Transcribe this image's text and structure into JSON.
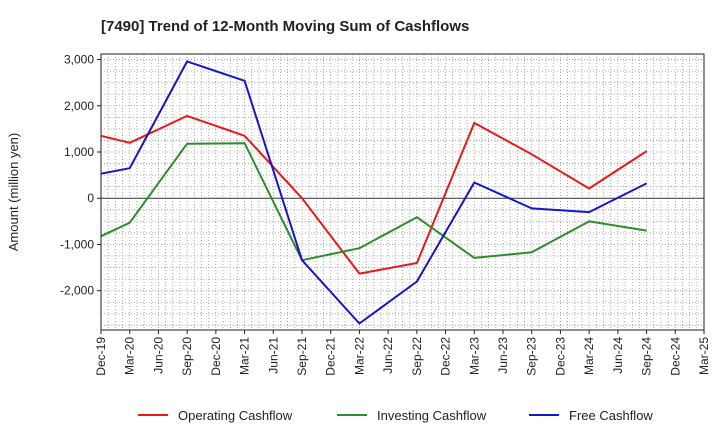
{
  "chart_data": {
    "type": "line",
    "title": "[7490]  Trend of 12-Month Moving Sum of Cashflows",
    "xlabel": "",
    "ylabel": "Amount (million yen)",
    "categories": [
      "Dec-19",
      "Mar-20",
      "Jun-20",
      "Sep-20",
      "Dec-20",
      "Mar-21",
      "Jun-21",
      "Sep-21",
      "Dec-21",
      "Mar-22",
      "Jun-22",
      "Sep-22",
      "Dec-22",
      "Mar-23",
      "Jun-23",
      "Sep-23",
      "Dec-23",
      "Mar-24",
      "Jun-24",
      "Sep-24",
      "Dec-24",
      "Mar-25"
    ],
    "ylim": [
      -2850,
      3120
    ],
    "yticks": [
      3000,
      2000,
      1000,
      0,
      -1000,
      -2000
    ],
    "ytick_labels": [
      "3,000",
      "2,000",
      "1,000",
      "0",
      "-1,000",
      "-2,000"
    ],
    "grid": true,
    "legend_position": "bottom",
    "series": [
      {
        "name": "Operating Cashflow",
        "color": "#e8191a",
        "points": [
          {
            "x": "Dec-19",
            "y": 1350
          },
          {
            "x": "Mar-20",
            "y": 1200
          },
          {
            "x": "Sep-20",
            "y": 1780
          },
          {
            "x": "Mar-21",
            "y": 1350
          },
          {
            "x": "Sep-21",
            "y": 0
          },
          {
            "x": "Mar-22",
            "y": -1630
          },
          {
            "x": "Sep-22",
            "y": -1400
          },
          {
            "x": "Mar-23",
            "y": 1630
          },
          {
            "x": "Sep-23",
            "y": 950
          },
          {
            "x": "Mar-24",
            "y": 210
          },
          {
            "x": "Sep-24",
            "y": 1020
          }
        ]
      },
      {
        "name": "Investing Cashflow",
        "color": "#2e8b2e",
        "points": [
          {
            "x": "Dec-19",
            "y": -820
          },
          {
            "x": "Mar-20",
            "y": -530
          },
          {
            "x": "Sep-20",
            "y": 1180
          },
          {
            "x": "Mar-21",
            "y": 1190
          },
          {
            "x": "Sep-21",
            "y": -1340
          },
          {
            "x": "Mar-22",
            "y": -1080
          },
          {
            "x": "Sep-22",
            "y": -410
          },
          {
            "x": "Mar-23",
            "y": -1290
          },
          {
            "x": "Sep-23",
            "y": -1170
          },
          {
            "x": "Mar-24",
            "y": -500
          },
          {
            "x": "Sep-24",
            "y": -700
          }
        ]
      },
      {
        "name": "Free Cashflow",
        "color": "#1515cc",
        "points": [
          {
            "x": "Dec-19",
            "y": 530
          },
          {
            "x": "Mar-20",
            "y": 650
          },
          {
            "x": "Sep-20",
            "y": 2960
          },
          {
            "x": "Mar-21",
            "y": 2540
          },
          {
            "x": "Sep-21",
            "y": -1340
          },
          {
            "x": "Mar-22",
            "y": -2710
          },
          {
            "x": "Sep-22",
            "y": -1800
          },
          {
            "x": "Mar-23",
            "y": 340
          },
          {
            "x": "Sep-23",
            "y": -220
          },
          {
            "x": "Mar-24",
            "y": -300
          },
          {
            "x": "Sep-24",
            "y": 320
          }
        ]
      }
    ]
  }
}
